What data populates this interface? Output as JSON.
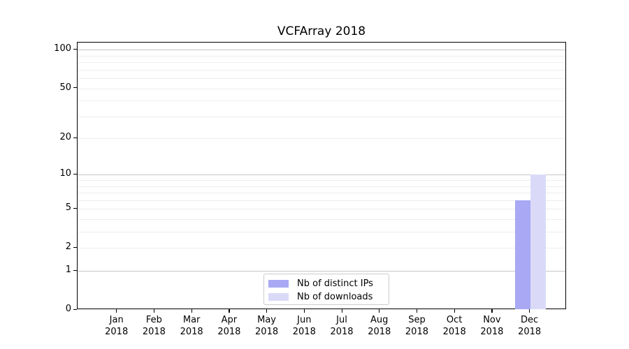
{
  "chart_data": {
    "type": "bar",
    "title": "VCFArray 2018",
    "categories": [
      "Jan",
      "Feb",
      "Mar",
      "Apr",
      "May",
      "Jun",
      "Jul",
      "Aug",
      "Sep",
      "Oct",
      "Nov",
      "Dec"
    ],
    "year_label": "2018",
    "series": [
      {
        "name": "Nb of distinct IPs",
        "color": "#a8a8f4",
        "values": [
          0,
          0,
          0,
          0,
          0,
          0,
          0,
          0,
          0,
          0,
          0,
          6
        ]
      },
      {
        "name": "Nb of downloads",
        "color": "#dadaf8",
        "values": [
          0,
          0,
          0,
          0,
          0,
          0,
          0,
          0,
          0,
          0,
          0,
          10
        ]
      }
    ],
    "xlabel": "",
    "ylabel": "",
    "yscale": "log1p",
    "ylim": [
      0,
      114
    ],
    "yticks": [
      0,
      1,
      2,
      5,
      10,
      20,
      50,
      100
    ],
    "major_gridlines": [
      1,
      10,
      100
    ],
    "minor_gridlines": [
      2,
      3,
      4,
      5,
      6,
      7,
      8,
      9,
      20,
      30,
      40,
      50,
      60,
      70,
      80,
      90
    ],
    "grid": true,
    "legend": {
      "position": "lower-center",
      "entries": [
        {
          "label": "Nb of distinct IPs",
          "swatch_color": "#a8a8f4"
        },
        {
          "label": "Nb of downloads",
          "swatch_color": "#dadaf8"
        }
      ]
    },
    "colors": {
      "background": "#ffffff",
      "major_grid": "#c6c6c6",
      "minor_grid": "#ededed",
      "axis": "#000000",
      "text": "#000000",
      "legend_border": "#cccccc"
    }
  }
}
